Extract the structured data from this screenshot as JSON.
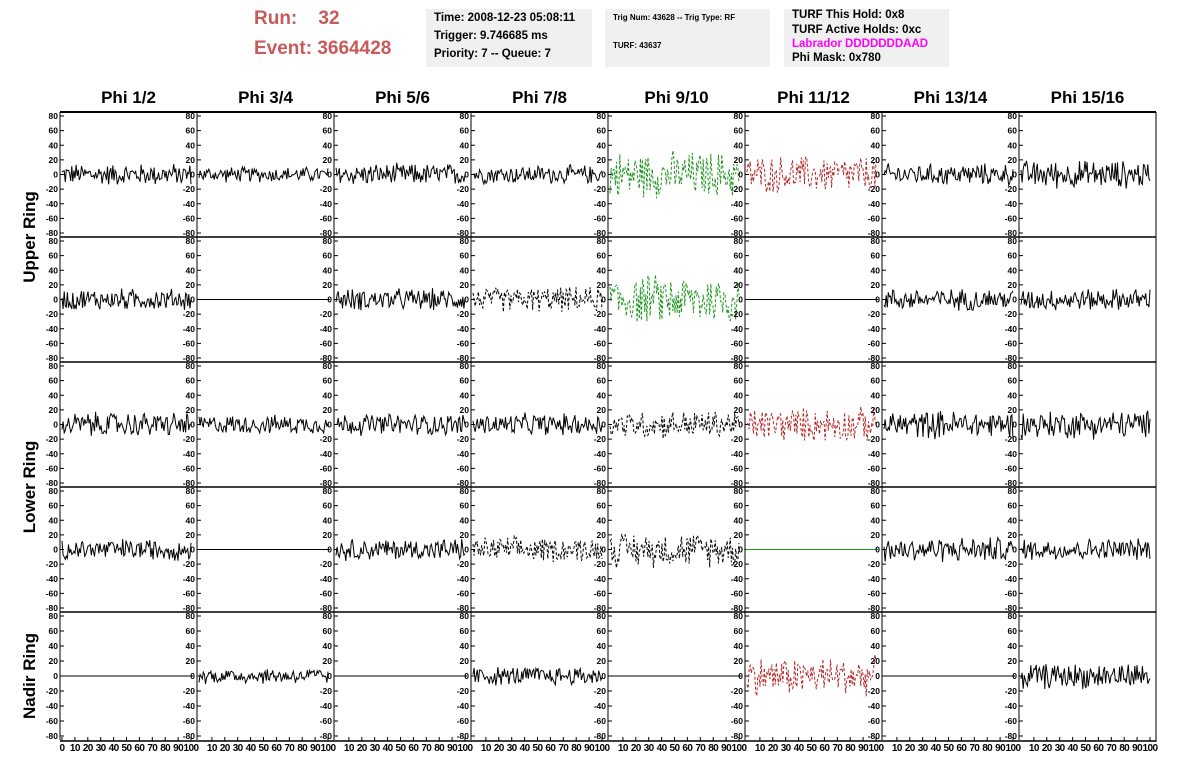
{
  "header": {
    "run_label": "Run:",
    "run_value": "32",
    "event_label": "Event:",
    "event_value": "3664428",
    "time_box": {
      "time": "Time: 2008-12-23 05:08:11",
      "trigger": "Trigger: 9.746685 ms",
      "priority": "Priority: 7 -- Queue: 7"
    },
    "trig_box": {
      "trig_line": "Trig Num: 43628 -- Trig Type: RF",
      "turf_line": "TURF: 43637"
    },
    "turf_box": {
      "this_hold": "TURF This Hold: 0x8",
      "active_holds": "TURF Active Holds: 0xc",
      "labrador": "Labrador DDDDDDDAAD",
      "phi_mask": "Phi Mask: 0x780"
    }
  },
  "columns": [
    "Phi 1/2",
    "Phi 3/4",
    "Phi 5/6",
    "Phi 7/8",
    "Phi 9/10",
    "Phi 11/12",
    "Phi 13/14",
    "Phi 15/16"
  ],
  "rows": [
    "Upper Ring",
    "Lower Ring",
    "Nadir Ring"
  ],
  "y_tick_labels": [
    "80",
    "60",
    "40",
    "20",
    "0",
    "-20",
    "-40",
    "-60",
    "-80"
  ],
  "x_axis_labels": {
    "first": [
      "0",
      "10",
      "20",
      "30",
      "40",
      "50",
      "60",
      "70",
      "80",
      "90",
      "100"
    ],
    "rest": [
      "10",
      "20",
      "30",
      "40",
      "50",
      "60",
      "70",
      "80",
      "90",
      "100"
    ]
  },
  "colors": {
    "run_text": "#c85a5a",
    "magenta": "#ff00ff",
    "green": "#1e961e",
    "red": "#b42828",
    "black": "#000000"
  },
  "panels": [
    [
      {
        "style": "solid",
        "color": "black",
        "amp": 14
      },
      {
        "style": "solid",
        "color": "black",
        "amp": 10
      },
      {
        "style": "solid",
        "color": "black",
        "amp": 14
      },
      {
        "style": "solid",
        "color": "black",
        "amp": 12
      },
      {
        "style": "dashed",
        "color": "green",
        "amp": 30
      },
      {
        "style": "dashed",
        "color": "red",
        "amp": 24
      },
      {
        "style": "solid",
        "color": "black",
        "amp": 14
      },
      {
        "style": "solid",
        "color": "black",
        "amp": 18
      }
    ],
    [
      {
        "style": "solid",
        "color": "black",
        "amp": 14
      },
      {
        "style": "flat",
        "color": "black",
        "amp": 0
      },
      {
        "style": "solid",
        "color": "black",
        "amp": 14
      },
      {
        "style": "dashed",
        "color": "black",
        "amp": 16
      },
      {
        "style": "dashed",
        "color": "green",
        "amp": 32
      },
      {
        "style": "flat",
        "color": "black",
        "amp": 0
      },
      {
        "style": "solid",
        "color": "black",
        "amp": 14
      },
      {
        "style": "solid",
        "color": "black",
        "amp": 14
      }
    ],
    [
      {
        "style": "solid",
        "color": "black",
        "amp": 16
      },
      {
        "style": "solid",
        "color": "black",
        "amp": 12
      },
      {
        "style": "solid",
        "color": "black",
        "amp": 14
      },
      {
        "style": "solid",
        "color": "black",
        "amp": 14
      },
      {
        "style": "dashed",
        "color": "black",
        "amp": 18
      },
      {
        "style": "dashed",
        "color": "red",
        "amp": 22
      },
      {
        "style": "solid",
        "color": "black",
        "amp": 18
      },
      {
        "style": "solid",
        "color": "black",
        "amp": 18
      }
    ],
    [
      {
        "style": "solid",
        "color": "black",
        "amp": 14
      },
      {
        "style": "flat",
        "color": "black",
        "amp": 0
      },
      {
        "style": "solid",
        "color": "black",
        "amp": 14
      },
      {
        "style": "dashed",
        "color": "black",
        "amp": 16
      },
      {
        "style": "dashed",
        "color": "black",
        "amp": 22
      },
      {
        "style": "flat",
        "color": "green",
        "amp": 0
      },
      {
        "style": "solid",
        "color": "black",
        "amp": 16
      },
      {
        "style": "solid",
        "color": "black",
        "amp": 14
      }
    ],
    [
      {
        "style": "flat",
        "color": "black",
        "amp": 0
      },
      {
        "style": "solid",
        "color": "black",
        "amp": 10
      },
      {
        "style": "flat",
        "color": "black",
        "amp": 0
      },
      {
        "style": "solid",
        "color": "black",
        "amp": 12
      },
      {
        "style": "flat",
        "color": "black",
        "amp": 0
      },
      {
        "style": "dashed",
        "color": "red",
        "amp": 24
      },
      {
        "style": "flat",
        "color": "black",
        "amp": 0
      },
      {
        "style": "solid",
        "color": "black",
        "amp": 16
      }
    ]
  ]
}
